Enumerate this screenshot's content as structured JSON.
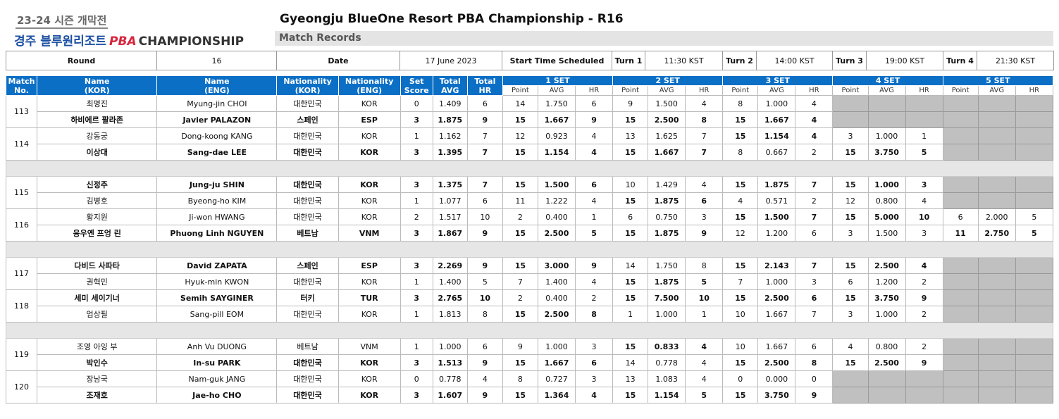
{
  "header": {
    "logo": {
      "season": "23-24 시즌 개막전",
      "name_kor": "경주 블루원리조트",
      "pba": "PBA",
      "championship": "CHAMPIONSHIP"
    },
    "title": "Gyeongju BlueOne Resort PBA Championship - R16",
    "subtitle": "Match Records"
  },
  "info": [
    "Round",
    "16",
    "Date",
    "17 June 2023",
    "Start Time Scheduled",
    "Turn 1",
    "11:30 KST",
    "Turn 2",
    "14:00 KST",
    "Turn 3",
    "19:00 KST",
    "Turn 4",
    "21:30 KST"
  ],
  "table": {
    "head_top": [
      "Match\nNo.",
      "Name\n(KOR)",
      "Name\n(ENG)",
      "Nationality\n(KOR)",
      "Nationality\n(ENG)",
      "Set\nScore",
      "Total\nAVG",
      "Total\nHR"
    ],
    "sets": [
      "1 SET",
      "2 SET",
      "3 SET",
      "4 SET",
      "5 SET"
    ],
    "set_cols": [
      "Point",
      "AVG",
      "HR"
    ]
  },
  "matches": [
    {
      "number": "113",
      "players": [
        {
          "name_kor": "최명진",
          "name_eng": "Myung-jin CHOI",
          "nat_kor": "대한민국",
          "nat_eng": "KOR",
          "set_score": "0",
          "total_avg": "1.409",
          "total_hr": "6",
          "sets": [
            [
              "14",
              "1.750",
              "6"
            ],
            [
              "9",
              "1.500",
              "4"
            ],
            [
              "8",
              "1.000",
              "4"
            ],
            null,
            null
          ]
        },
        {
          "name_kor": "하비에르 팔라존",
          "name_eng": "Javier PALAZON",
          "nat_kor": "스페인",
          "nat_eng": "ESP",
          "set_score": "3",
          "total_avg": "1.875",
          "total_hr": "9",
          "sets": [
            [
              "15",
              "1.667",
              "9"
            ],
            [
              "15",
              "2.500",
              "8"
            ],
            [
              "15",
              "1.667",
              "4"
            ],
            null,
            null
          ]
        }
      ]
    },
    {
      "number": "114",
      "players": [
        {
          "name_kor": "강동궁",
          "name_eng": "Dong-koong KANG",
          "nat_kor": "대한민국",
          "nat_eng": "KOR",
          "set_score": "1",
          "total_avg": "1.162",
          "total_hr": "7",
          "sets": [
            [
              "12",
              "0.923",
              "4"
            ],
            [
              "13",
              "1.625",
              "7"
            ],
            [
              "15",
              "1.154",
              "4"
            ],
            [
              "3",
              "1.000",
              "1"
            ],
            null
          ]
        },
        {
          "name_kor": "이상대",
          "name_eng": "Sang-dae LEE",
          "nat_kor": "대한민국",
          "nat_eng": "KOR",
          "set_score": "3",
          "total_avg": "1.395",
          "total_hr": "7",
          "sets": [
            [
              "15",
              "1.154",
              "4"
            ],
            [
              "15",
              "1.667",
              "7"
            ],
            [
              "8",
              "0.667",
              "2"
            ],
            [
              "15",
              "3.750",
              "5"
            ],
            null
          ]
        }
      ]
    },
    {
      "number": "115",
      "players": [
        {
          "name_kor": "신정주",
          "name_eng": "Jung-ju SHIN",
          "nat_kor": "대한민국",
          "nat_eng": "KOR",
          "set_score": "3",
          "total_avg": "1.375",
          "total_hr": "7",
          "sets": [
            [
              "15",
              "1.500",
              "6"
            ],
            [
              "10",
              "1.429",
              "4"
            ],
            [
              "15",
              "1.875",
              "7"
            ],
            [
              "15",
              "1.000",
              "3"
            ],
            null
          ]
        },
        {
          "name_kor": "김병호",
          "name_eng": "Byeong-ho KIM",
          "nat_kor": "대한민국",
          "nat_eng": "KOR",
          "set_score": "1",
          "total_avg": "1.077",
          "total_hr": "6",
          "sets": [
            [
              "11",
              "1.222",
              "4"
            ],
            [
              "15",
              "1.875",
              "6"
            ],
            [
              "4",
              "0.571",
              "2"
            ],
            [
              "12",
              "0.800",
              "4"
            ],
            null
          ]
        }
      ]
    },
    {
      "number": "116",
      "players": [
        {
          "name_kor": "황지원",
          "name_eng": "Ji-won HWANG",
          "nat_kor": "대한민국",
          "nat_eng": "KOR",
          "set_score": "2",
          "total_avg": "1.517",
          "total_hr": "10",
          "sets": [
            [
              "2",
              "0.400",
              "1"
            ],
            [
              "6",
              "0.750",
              "3"
            ],
            [
              "15",
              "1.500",
              "7"
            ],
            [
              "15",
              "5.000",
              "10"
            ],
            [
              "6",
              "2.000",
              "5"
            ]
          ]
        },
        {
          "name_kor": "응우옌 프엉 린",
          "name_eng": "Phuong Linh NGUYEN",
          "nat_kor": "베트남",
          "nat_eng": "VNM",
          "set_score": "3",
          "total_avg": "1.867",
          "total_hr": "9",
          "sets": [
            [
              "15",
              "2.500",
              "5"
            ],
            [
              "15",
              "1.875",
              "9"
            ],
            [
              "12",
              "1.200",
              "6"
            ],
            [
              "3",
              "1.500",
              "3"
            ],
            [
              "11",
              "2.750",
              "5"
            ]
          ]
        }
      ]
    },
    {
      "number": "117",
      "players": [
        {
          "name_kor": "다비드 사파타",
          "name_eng": "David ZAPATA",
          "nat_kor": "스페인",
          "nat_eng": "ESP",
          "set_score": "3",
          "total_avg": "2.269",
          "total_hr": "9",
          "sets": [
            [
              "15",
              "3.000",
              "9"
            ],
            [
              "14",
              "1.750",
              "8"
            ],
            [
              "15",
              "2.143",
              "7"
            ],
            [
              "15",
              "2.500",
              "4"
            ],
            null
          ]
        },
        {
          "name_kor": "권혁민",
          "name_eng": "Hyuk-min KWON",
          "nat_kor": "대한민국",
          "nat_eng": "KOR",
          "set_score": "1",
          "total_avg": "1.400",
          "total_hr": "5",
          "sets": [
            [
              "7",
              "1.400",
              "4"
            ],
            [
              "15",
              "1.875",
              "5"
            ],
            [
              "7",
              "1.000",
              "3"
            ],
            [
              "6",
              "1.200",
              "2"
            ],
            null
          ]
        }
      ]
    },
    {
      "number": "118",
      "players": [
        {
          "name_kor": "세미 세이기너",
          "name_eng": "Semih SAYGINER",
          "nat_kor": "터키",
          "nat_eng": "TUR",
          "set_score": "3",
          "total_avg": "2.765",
          "total_hr": "10",
          "sets": [
            [
              "2",
              "0.400",
              "2"
            ],
            [
              "15",
              "7.500",
              "10"
            ],
            [
              "15",
              "2.500",
              "6"
            ],
            [
              "15",
              "3.750",
              "9"
            ],
            null
          ]
        },
        {
          "name_kor": "엄상필",
          "name_eng": "Sang-pill EOM",
          "nat_kor": "대한민국",
          "nat_eng": "KOR",
          "set_score": "1",
          "total_avg": "1.813",
          "total_hr": "8",
          "sets": [
            [
              "15",
              "2.500",
              "8"
            ],
            [
              "1",
              "1.000",
              "1"
            ],
            [
              "10",
              "1.667",
              "7"
            ],
            [
              "3",
              "1.000",
              "2"
            ],
            null
          ]
        }
      ]
    },
    {
      "number": "119",
      "players": [
        {
          "name_kor": "조영 아잉 부",
          "name_eng": "Anh Vu DUONG",
          "nat_kor": "베트남",
          "nat_eng": "VNM",
          "set_score": "1",
          "total_avg": "1.000",
          "total_hr": "6",
          "sets": [
            [
              "9",
              "1.000",
              "3"
            ],
            [
              "15",
              "0.833",
              "4"
            ],
            [
              "10",
              "1.667",
              "6"
            ],
            [
              "4",
              "0.800",
              "2"
            ],
            null
          ]
        },
        {
          "name_kor": "박인수",
          "name_eng": "In-su PARK",
          "nat_kor": "대한민국",
          "nat_eng": "KOR",
          "set_score": "3",
          "total_avg": "1.513",
          "total_hr": "9",
          "sets": [
            [
              "15",
              "1.667",
              "6"
            ],
            [
              "14",
              "0.778",
              "4"
            ],
            [
              "15",
              "2.500",
              "8"
            ],
            [
              "15",
              "2.500",
              "9"
            ],
            null
          ]
        }
      ]
    },
    {
      "number": "120",
      "players": [
        {
          "name_kor": "장남국",
          "name_eng": "Nam-guk JANG",
          "nat_kor": "대한민국",
          "nat_eng": "KOR",
          "set_score": "0",
          "total_avg": "0.778",
          "total_hr": "4",
          "sets": [
            [
              "8",
              "0.727",
              "3"
            ],
            [
              "13",
              "1.083",
              "4"
            ],
            [
              "0",
              "0.000",
              "0"
            ],
            null,
            null
          ]
        },
        {
          "name_kor": "조재호",
          "name_eng": "Jae-ho CHO",
          "nat_kor": "대한민국",
          "nat_eng": "KOR",
          "set_score": "3",
          "total_avg": "1.607",
          "total_hr": "9",
          "sets": [
            [
              "15",
              "1.364",
              "4"
            ],
            [
              "15",
              "1.154",
              "5"
            ],
            [
              "15",
              "3.750",
              "9"
            ],
            null,
            null
          ]
        }
      ]
    }
  ]
}
